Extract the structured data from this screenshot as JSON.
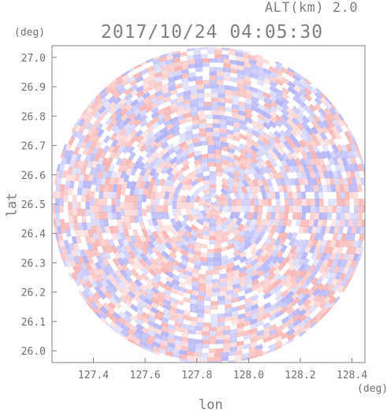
{
  "header": {
    "altitude": "ALT(km) 2.0",
    "timestamp": "2017/10/24 04:05:30"
  },
  "axes": {
    "x_label": "lon",
    "y_label": "lat",
    "x_unit": "(deg)",
    "y_unit": "(deg)",
    "x_ticks": [
      "127.4",
      "127.6",
      "127.8",
      "128.0",
      "128.2",
      "128.4"
    ],
    "y_ticks": [
      "27.0",
      "26.9",
      "26.8",
      "26.7",
      "26.6",
      "26.5",
      "26.4",
      "26.3",
      "26.2",
      "26.1",
      "26.0"
    ]
  },
  "map_data": {
    "type": "radar-ppi",
    "x_range": [
      127.24,
      128.45
    ],
    "y_range": [
      25.96,
      27.04
    ],
    "center": [
      127.855,
      26.495
    ],
    "radius_deg": 0.54,
    "colors": {
      "positive": "#f08080",
      "negative": "#8080f0",
      "frame": "#808080"
    }
  }
}
